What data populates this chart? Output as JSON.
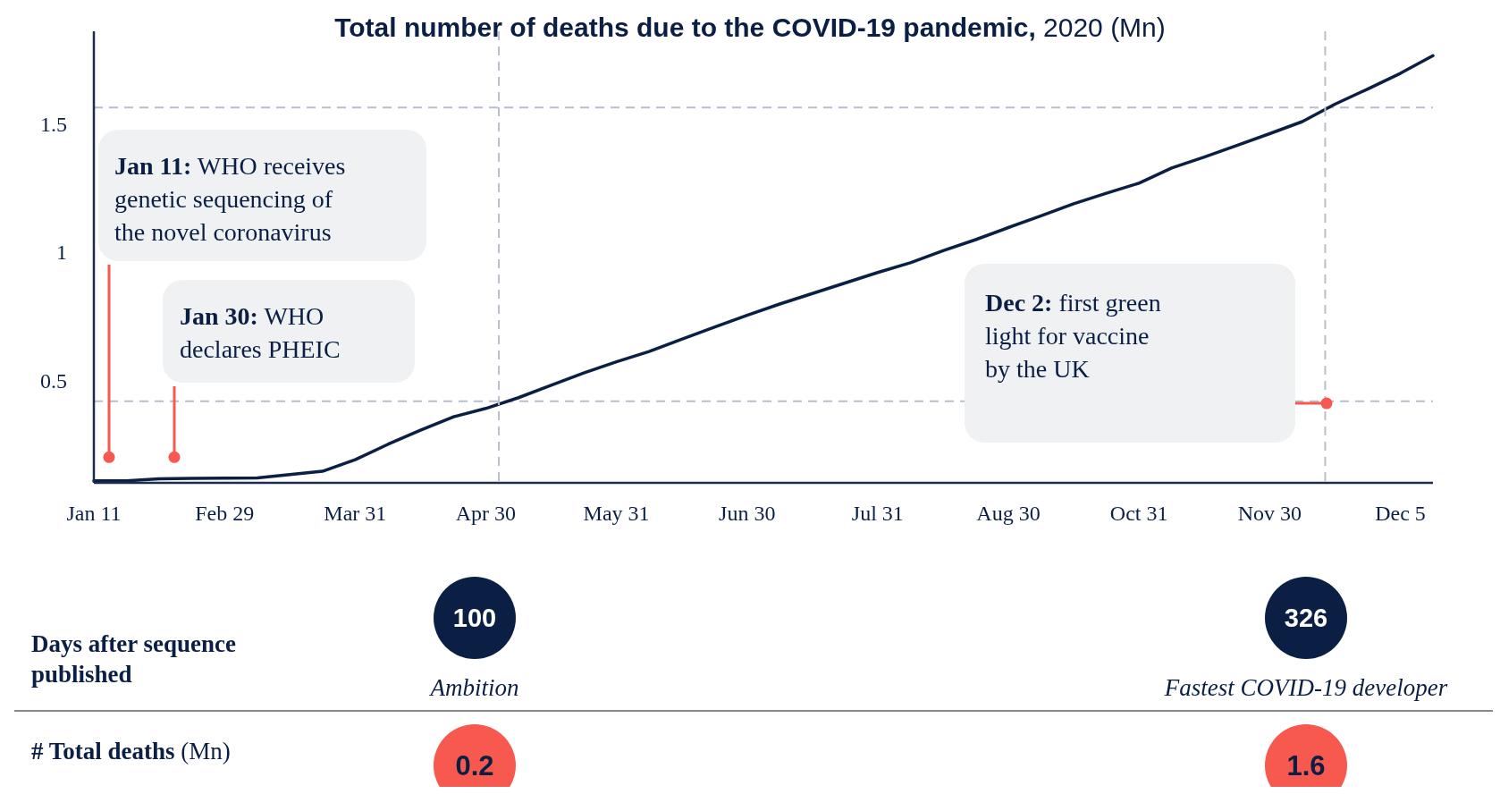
{
  "chart_data": {
    "type": "line",
    "title": "Total number of deaths due to the COVID-19 pandemic, 2020 (Mn)",
    "categories": [
      "Jan 11",
      null,
      null,
      null,
      "Feb 29",
      null,
      null,
      null,
      "Mar 31",
      null,
      null,
      null,
      "Apr 30",
      null,
      null,
      null,
      "May 31",
      null,
      null,
      null,
      "Jun 30",
      null,
      null,
      null,
      "Jul 31",
      null,
      null,
      null,
      "Aug 30",
      null,
      null,
      null,
      "Oct 31",
      null,
      null,
      null,
      "Nov 30",
      null,
      null,
      null,
      "Dec 5",
      null
    ],
    "series": [
      {
        "color": "#0b1f44",
        "values": [
          0.108,
          0.108,
          0.116,
          0.117,
          0.118,
          0.119,
          0.132,
          0.145,
          0.19,
          0.25,
          0.305,
          0.357,
          0.39,
          0.432,
          0.48,
          0.528,
          0.572,
          0.612,
          0.66,
          0.707,
          0.753,
          0.797,
          0.838,
          0.879,
          0.92,
          0.958,
          1.005,
          1.048,
          1.095,
          1.141,
          1.188,
          1.229,
          1.268,
          1.327,
          1.37,
          1.415,
          1.461,
          1.508,
          1.576,
          1.635,
          1.696,
          1.765
        ]
      }
    ],
    "ylim": [
      0.1,
      1.86
    ],
    "yticks": [
      0.5,
      1,
      1.5
    ],
    "grid": false,
    "marker": "none",
    "line_style": "solid",
    "ref_lines": [
      {
        "axis": "y",
        "value": 0.418,
        "color": "#b8bfcc",
        "line_style": "dashed"
      },
      {
        "axis": "y",
        "value": 1.563,
        "color": "#b8bfcc",
        "line_style": "dashed"
      }
    ],
    "annotations": [
      "Jan 11: WHO receives genetic sequencing of the novel coronavirus",
      "Jan 30: WHO declares PHEIC",
      "Dec 2: first green light for vaccine by the UK",
      "Days after sequence published",
      "100",
      "Ambition",
      "326",
      "Fastest COVID-19 developer",
      "# Total deaths (Mn)",
      "0.2",
      "1.6"
    ]
  }
}
